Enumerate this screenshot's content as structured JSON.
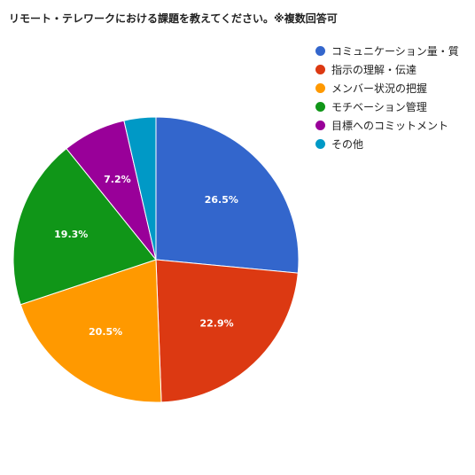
{
  "chart_data": {
    "type": "pie",
    "title": "リモート・テレワークにおける課題を教えてください。※複数回答可",
    "legend_position": "right",
    "series": [
      {
        "name": "コミュニケーション量・質",
        "value": 26.5,
        "label": "26.5%",
        "color": "#3366cc"
      },
      {
        "name": "指示の理解・伝達",
        "value": 22.9,
        "label": "22.9%",
        "color": "#dc3912"
      },
      {
        "name": "メンバー状況の把握",
        "value": 20.5,
        "label": "20.5%",
        "color": "#ff9900"
      },
      {
        "name": "モチベーション管理",
        "value": 19.3,
        "label": "19.3%",
        "color": "#109618"
      },
      {
        "name": "目標へのコミットメント",
        "value": 7.2,
        "label": "7.2%",
        "color": "#990099"
      },
      {
        "name": "その他",
        "value": 3.6,
        "label": "",
        "color": "#0099c6"
      }
    ]
  }
}
